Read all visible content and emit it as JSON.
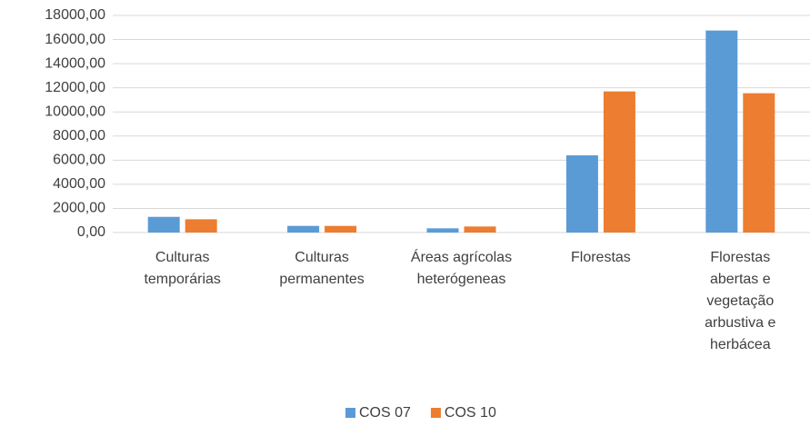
{
  "chart_data": {
    "type": "bar",
    "categories": [
      "Culturas temporárias",
      "Culturas permanentes",
      "Áreas agrícolas heterógeneas",
      "Florestas",
      "Florestas abertas e vegetação arbustiva e herbácea"
    ],
    "series": [
      {
        "name": "COS 07",
        "color": "#5b9bd5",
        "values": [
          1300,
          550,
          350,
          6400,
          16750
        ]
      },
      {
        "name": "COS 10",
        "color": "#ed7d31",
        "values": [
          1100,
          550,
          500,
          11700,
          11550
        ]
      }
    ],
    "ylim": [
      0,
      18000
    ],
    "yticks": [
      {
        "value": 0,
        "label": "0,00"
      },
      {
        "value": 2000,
        "label": "2000,00"
      },
      {
        "value": 4000,
        "label": "4000,00"
      },
      {
        "value": 6000,
        "label": "6000,00"
      },
      {
        "value": 8000,
        "label": "8000,00"
      },
      {
        "value": 10000,
        "label": "10000,00"
      },
      {
        "value": 12000,
        "label": "12000,00"
      },
      {
        "value": 14000,
        "label": "14000,00"
      },
      {
        "value": 16000,
        "label": "16000,00"
      },
      {
        "value": 18000,
        "label": "18000,00"
      }
    ],
    "grid": true,
    "legend": "bottom"
  }
}
